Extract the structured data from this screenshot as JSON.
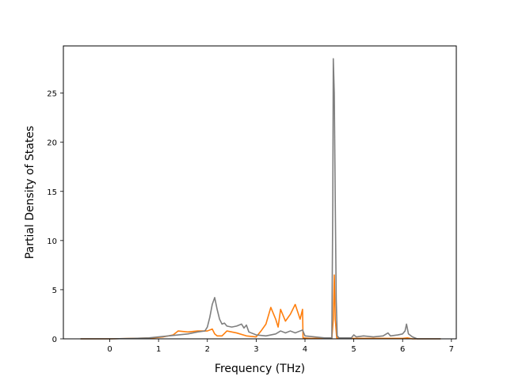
{
  "chart_data": {
    "type": "line",
    "title": "",
    "xlabel": "Frequency (THz)",
    "ylabel": "Partial Density of States",
    "xlim": [
      -0.95,
      7.1
    ],
    "ylim": [
      0,
      29.8
    ],
    "xticks": [
      0,
      1,
      2,
      3,
      4,
      5,
      6,
      7
    ],
    "yticks": [
      0,
      5,
      10,
      15,
      20,
      25
    ],
    "grid": false,
    "legend": "none",
    "colors": {
      "total": "#7f7f7f",
      "species_a": "#e377c2",
      "species_b": "#ff7f0e",
      "species_c": "#8c564b"
    },
    "series": [
      {
        "color": "#ff7f0e",
        "x": [
          -0.6,
          0.0,
          0.5,
          0.9,
          1.1,
          1.3,
          1.4,
          1.6,
          1.8,
          2.0,
          2.1,
          2.15,
          2.2,
          2.3,
          2.4,
          2.6,
          2.8,
          3.0,
          3.1,
          3.2,
          3.3,
          3.4,
          3.45,
          3.5,
          3.6,
          3.7,
          3.8,
          3.9,
          3.95,
          3.96,
          4.1,
          4.55,
          4.58,
          4.6,
          4.62,
          4.65,
          4.7,
          5.0,
          5.5,
          6.0,
          6.1,
          6.2,
          6.78
        ],
        "y": [
          0.0,
          0.0,
          0.05,
          0.1,
          0.2,
          0.4,
          0.8,
          0.7,
          0.8,
          0.8,
          1.0,
          0.5,
          0.3,
          0.3,
          0.8,
          0.6,
          0.3,
          0.2,
          0.8,
          1.5,
          3.2,
          2.0,
          1.2,
          3.0,
          1.8,
          2.5,
          3.5,
          2.0,
          3.0,
          0.1,
          0.05,
          0.05,
          2.0,
          6.5,
          2.0,
          0.1,
          0.05,
          0.05,
          0.05,
          0.05,
          0.1,
          0.0,
          0.0
        ]
      },
      {
        "color": "#7f7f7f",
        "x": [
          -0.6,
          0.0,
          0.5,
          0.8,
          1.0,
          1.2,
          1.4,
          1.6,
          1.8,
          1.95,
          2.0,
          2.05,
          2.1,
          2.15,
          2.2,
          2.25,
          2.3,
          2.35,
          2.4,
          2.5,
          2.6,
          2.7,
          2.75,
          2.8,
          2.85,
          3.0,
          3.2,
          3.4,
          3.5,
          3.6,
          3.7,
          3.8,
          3.9,
          3.95,
          4.0,
          4.2,
          4.4,
          4.55,
          4.57,
          4.58,
          4.6,
          4.62,
          4.64,
          4.66,
          4.7,
          4.8,
          4.95,
          5.0,
          5.05,
          5.2,
          5.4,
          5.6,
          5.7,
          5.75,
          5.9,
          6.0,
          6.05,
          6.08,
          6.12,
          6.2,
          6.3,
          6.78
        ],
        "y": [
          0.0,
          0.0,
          0.05,
          0.1,
          0.2,
          0.3,
          0.4,
          0.5,
          0.7,
          0.8,
          1.2,
          2.2,
          3.5,
          4.2,
          3.0,
          2.0,
          1.5,
          1.6,
          1.3,
          1.2,
          1.3,
          1.5,
          1.1,
          1.4,
          0.7,
          0.4,
          0.3,
          0.5,
          0.8,
          0.6,
          0.8,
          0.6,
          0.8,
          0.9,
          0.3,
          0.2,
          0.1,
          0.1,
          14.0,
          28.5,
          25.0,
          14.0,
          4.0,
          0.3,
          0.1,
          0.1,
          0.1,
          0.4,
          0.2,
          0.3,
          0.2,
          0.3,
          0.6,
          0.3,
          0.4,
          0.5,
          0.8,
          1.5,
          0.5,
          0.2,
          0.0,
          0.0
        ]
      }
    ]
  }
}
